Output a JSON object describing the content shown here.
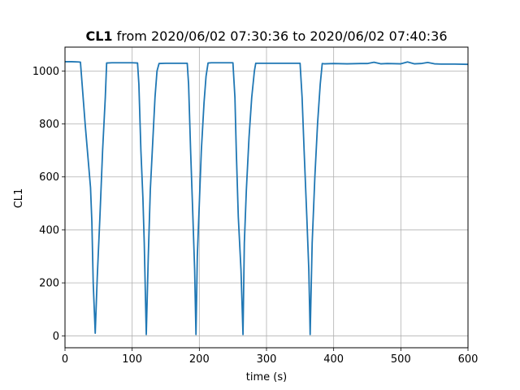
{
  "chart_data": {
    "type": "line",
    "title_bold": "CL1",
    "title_rest": " from 2020/06/02 07:30:36 to 2020/06/02 07:40:36",
    "xlabel": "time (s)",
    "ylabel": "CL1",
    "xlim": [
      0,
      600
    ],
    "ylim": [
      -45,
      1090
    ],
    "xticks": [
      0,
      100,
      200,
      300,
      400,
      500,
      600
    ],
    "yticks": [
      0,
      200,
      400,
      600,
      800,
      1000
    ],
    "grid": true,
    "series_color": "#1f77b4",
    "series": [
      {
        "x": [
          0,
          10,
          20,
          23,
          30,
          35,
          38,
          40,
          42,
          45,
          48,
          52,
          56,
          60,
          62,
          70,
          80,
          90,
          100,
          108,
          110,
          113,
          116,
          118,
          121,
          124,
          127,
          131,
          134,
          137,
          140,
          150,
          160,
          170,
          182,
          184,
          187,
          190,
          193,
          195,
          197,
          200,
          203,
          207,
          210,
          213,
          218,
          230,
          240,
          250,
          253,
          255,
          258,
          262,
          265,
          267,
          270,
          274,
          278,
          282,
          284,
          290,
          300,
          320,
          340,
          350,
          353,
          356,
          360,
          363,
          365,
          368,
          372,
          376,
          380,
          383,
          386,
          400,
          420,
          440,
          450,
          460,
          470,
          480,
          500,
          510,
          520,
          530,
          540,
          550,
          560,
          580,
          600
        ],
        "y": [
          1035,
          1035,
          1034,
          1033,
          800,
          650,
          560,
          430,
          200,
          10,
          220,
          450,
          700,
          900,
          1030,
          1031,
          1031,
          1031,
          1031,
          1030,
          950,
          700,
          520,
          350,
          5,
          300,
          550,
          750,
          900,
          1000,
          1028,
          1029,
          1029,
          1029,
          1029,
          950,
          700,
          480,
          250,
          5,
          300,
          500,
          700,
          880,
          980,
          1030,
          1031,
          1031,
          1031,
          1031,
          900,
          700,
          450,
          250,
          5,
          350,
          550,
          750,
          900,
          1000,
          1029,
          1029,
          1029,
          1029,
          1029,
          1029,
          900,
          700,
          450,
          250,
          5,
          350,
          600,
          800,
          950,
          1028,
          1027,
          1028,
          1027,
          1028,
          1028,
          1033,
          1027,
          1028,
          1027,
          1034,
          1027,
          1028,
          1032,
          1027,
          1026,
          1026,
          1025
        ]
      }
    ]
  }
}
